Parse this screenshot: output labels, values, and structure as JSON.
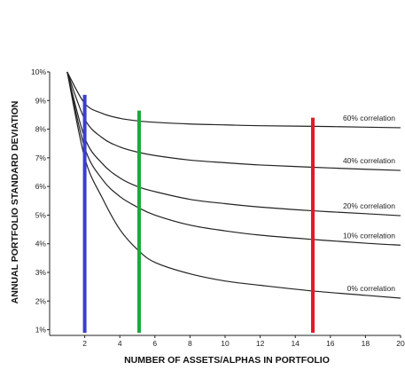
{
  "chart_data": {
    "type": "line",
    "xlabel": "NUMBER OF ASSETS/ALPHAS IN PORTFOLIO",
    "ylabel": "ANNUAL PORTFOLIO STANDARD DEVIATION",
    "xlim": [
      0,
      20
    ],
    "ylim": [
      0.8,
      10
    ],
    "xticks": [
      2,
      4,
      6,
      8,
      10,
      12,
      14,
      16,
      18,
      20
    ],
    "xtick_labels": [
      "2",
      "4",
      "6",
      "8",
      "10",
      "12",
      "14",
      "16",
      "18",
      "20"
    ],
    "yticks": [
      1,
      2,
      3,
      4,
      5,
      6,
      7,
      8,
      9,
      10
    ],
    "ytick_labels": [
      "1%",
      "2%",
      "3%",
      "4%",
      "5%",
      "6%",
      "7%",
      "8%",
      "9%",
      "10%"
    ],
    "grid": false,
    "series": [
      {
        "name": "60% correlation",
        "x": [
          1,
          2,
          3,
          4,
          5,
          6,
          8,
          10,
          12,
          15,
          18,
          20
        ],
        "y": [
          10,
          8.9,
          8.55,
          8.38,
          8.29,
          8.24,
          8.18,
          8.15,
          8.12,
          8.1,
          8.07,
          8.05
        ]
      },
      {
        "name": "40% correlation",
        "x": [
          1,
          2,
          3,
          4,
          5,
          6,
          8,
          10,
          12,
          15,
          18,
          20
        ],
        "y": [
          10,
          8.35,
          7.7,
          7.38,
          7.2,
          7.08,
          6.92,
          6.83,
          6.75,
          6.67,
          6.6,
          6.56
        ]
      },
      {
        "name": "20% correlation",
        "x": [
          1,
          2,
          3,
          4,
          5,
          6,
          8,
          10,
          12,
          15,
          18,
          20
        ],
        "y": [
          10,
          7.7,
          6.8,
          6.3,
          6.0,
          5.82,
          5.55,
          5.4,
          5.28,
          5.15,
          5.05,
          4.98
        ]
      },
      {
        "name": "10% correlation",
        "x": [
          1,
          2,
          3,
          4,
          5,
          6,
          8,
          10,
          12,
          15,
          18,
          20
        ],
        "y": [
          10,
          7.35,
          6.25,
          5.65,
          5.28,
          5.0,
          4.65,
          4.45,
          4.3,
          4.15,
          4.02,
          3.95
        ]
      },
      {
        "name": "0% correlation",
        "x": [
          1,
          2,
          3,
          4,
          5,
          6,
          8,
          10,
          12,
          15,
          18,
          20
        ],
        "y": [
          10,
          7.0,
          5.6,
          4.5,
          3.8,
          3.35,
          2.95,
          2.7,
          2.55,
          2.35,
          2.2,
          2.1
        ]
      }
    ],
    "vertical_markers": [
      {
        "x": 2,
        "y_top": 9.2,
        "color": "#3a3fd0"
      },
      {
        "x": 5.1,
        "y_top": 8.65,
        "color": "#1ea83a"
      },
      {
        "x": 15,
        "y_top": 8.4,
        "color": "#e01b24"
      }
    ],
    "line_color": "#222222"
  }
}
